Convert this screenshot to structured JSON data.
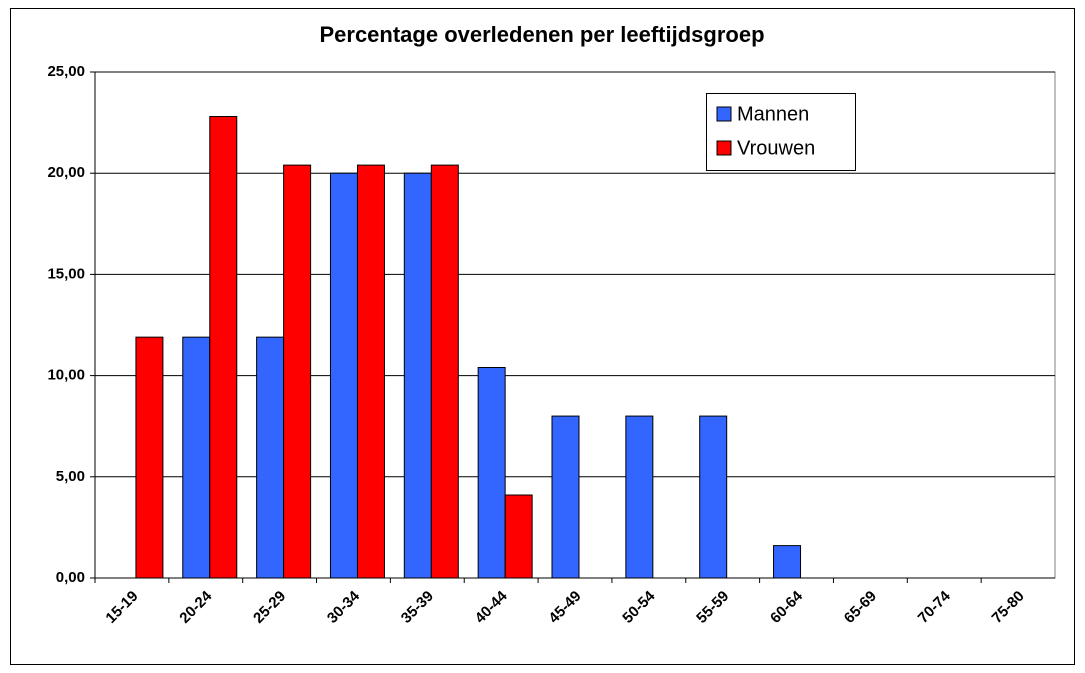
{
  "chart_data": {
    "type": "bar",
    "title": "Percentage overledenen per leeftijdsgroep",
    "categories": [
      "15-19",
      "20-24",
      "25-29",
      "30-34",
      "35-39",
      "40-44",
      "45-49",
      "50-54",
      "55-59",
      "60-64",
      "65-69",
      "70-74",
      "75-80"
    ],
    "series": [
      {
        "name": "Mannen",
        "color": "#3366ff",
        "values": [
          0,
          11.9,
          11.9,
          20.0,
          20.0,
          10.4,
          8.0,
          8.0,
          8.0,
          1.6,
          0,
          0,
          0
        ]
      },
      {
        "name": "Vrouwen",
        "color": "#ff0000",
        "values": [
          11.9,
          22.8,
          20.4,
          20.4,
          20.4,
          4.1,
          0,
          0,
          0,
          0,
          0,
          0,
          0
        ]
      }
    ],
    "ylim": [
      0,
      25
    ],
    "yticks": [
      {
        "value": 0,
        "label": "0,00"
      },
      {
        "value": 5,
        "label": "5,00"
      },
      {
        "value": 10,
        "label": "10,00"
      },
      {
        "value": 15,
        "label": "15,00"
      },
      {
        "value": 20,
        "label": "20,00"
      },
      {
        "value": 25,
        "label": "25,00"
      }
    ],
    "grid": true,
    "legend": "top-right"
  }
}
